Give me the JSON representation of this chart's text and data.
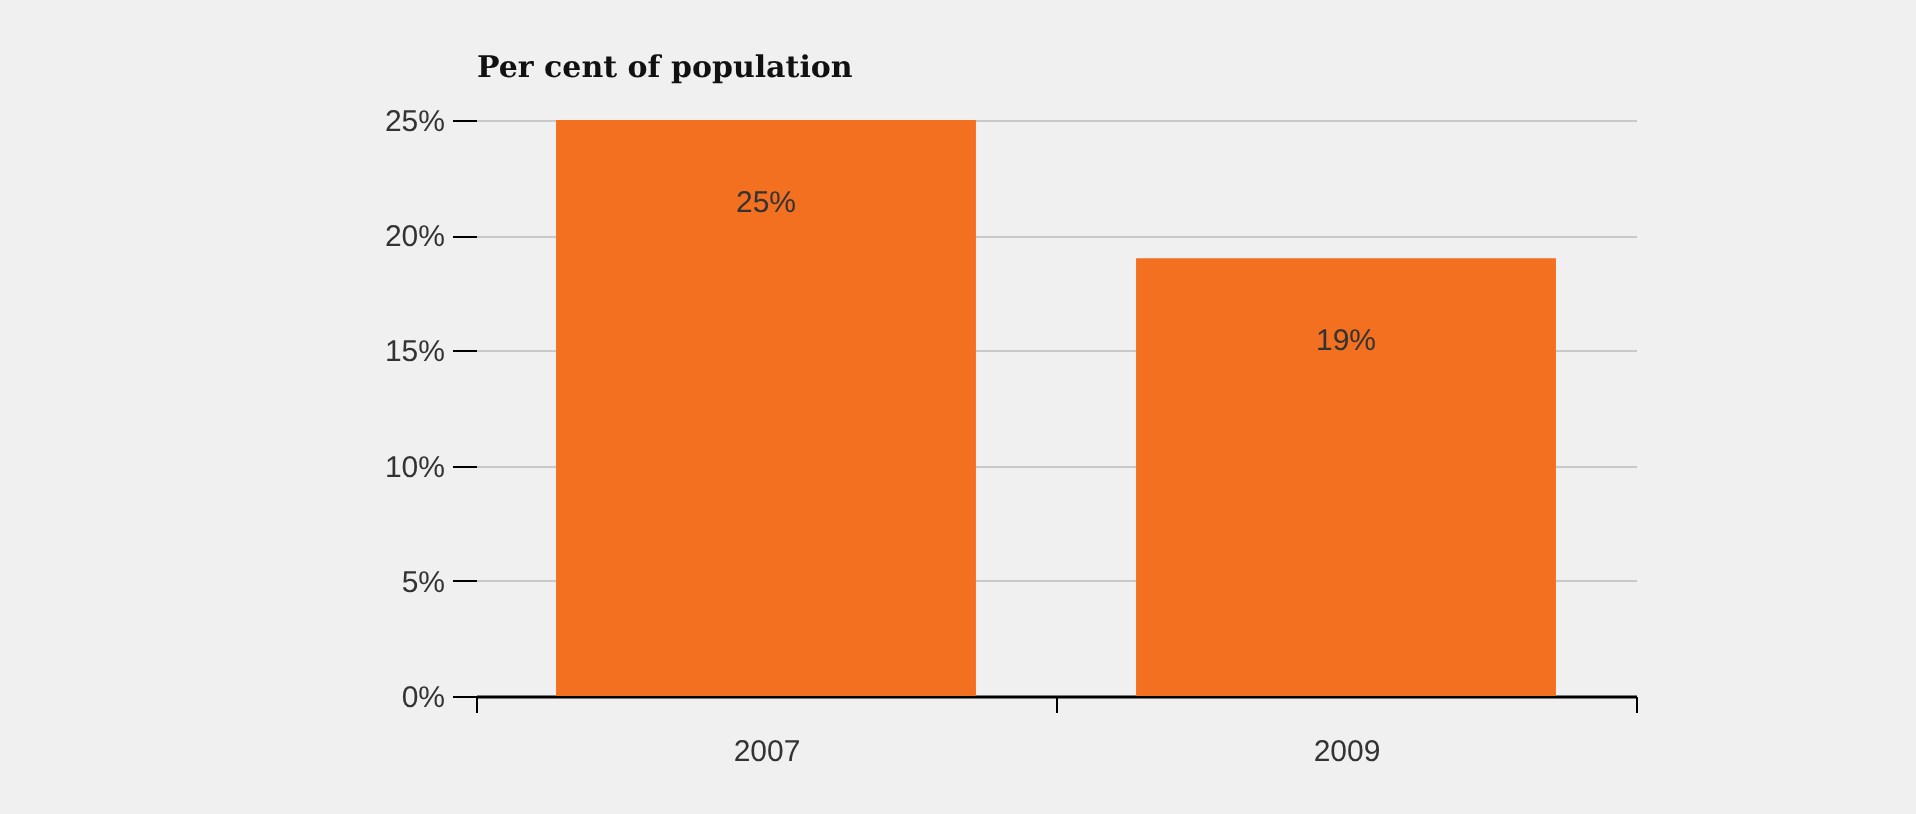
{
  "chart_data": {
    "type": "bar",
    "ylabel": "Per cent of population",
    "categories": [
      "2007",
      "2009"
    ],
    "values": [
      25,
      19
    ],
    "value_labels": [
      "25%",
      "19%"
    ],
    "color": "#f37021",
    "ylim": [
      0,
      25
    ],
    "yticks": [
      {
        "value": 0,
        "label": "0%"
      },
      {
        "value": 5,
        "label": "5%"
      },
      {
        "value": 10,
        "label": "10%"
      },
      {
        "value": 15,
        "label": "15%"
      },
      {
        "value": 20,
        "label": "20%"
      },
      {
        "value": 25,
        "label": "25%"
      }
    ],
    "grid": "y"
  }
}
